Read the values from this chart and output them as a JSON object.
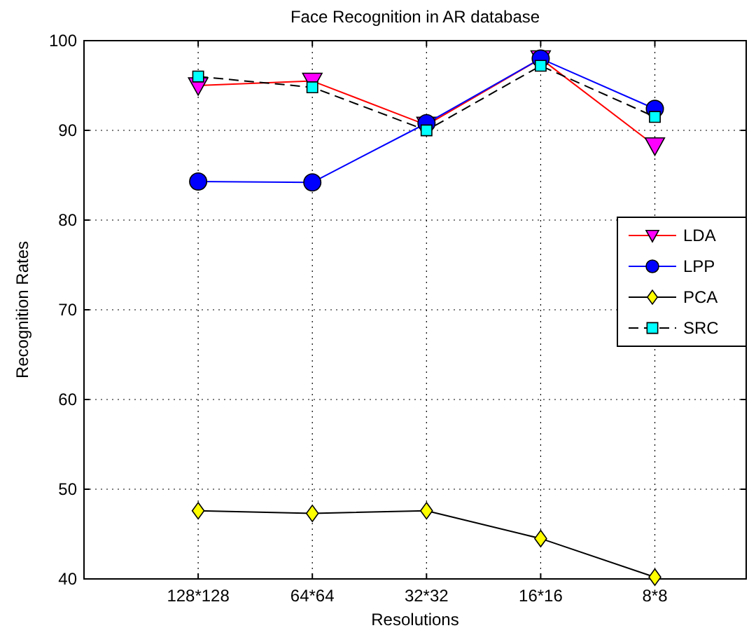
{
  "chart_data": {
    "type": "line",
    "title": "Face Recognition in AR database",
    "xlabel": "Resolutions",
    "ylabel": "Recognition Rates",
    "categories": [
      "128*128",
      "64*64",
      "32*32",
      "16*16",
      "8*8"
    ],
    "ylim": [
      40,
      100
    ],
    "yticks": [
      40,
      50,
      60,
      70,
      80,
      90,
      100
    ],
    "grid": true,
    "legend": "right",
    "series": [
      {
        "name": "LDA",
        "color": "#ff0000",
        "colors": [
          "#ff00ff",
          "#ff00ff",
          "#ff00ff",
          "#ff00ff",
          "#ff00ff"
        ],
        "marker": "triangle",
        "line_style": "solid",
        "values": [
          95.0,
          95.5,
          90.6,
          98.0,
          88.3
        ]
      },
      {
        "name": "LPP",
        "color": "#0000ff",
        "colors": [
          "#0000ff",
          "#0000ff",
          "#0000ff",
          "#0000ff",
          "#0000ff"
        ],
        "marker": "circle",
        "line_style": "solid",
        "values": [
          84.3,
          84.2,
          90.8,
          98.0,
          92.4
        ]
      },
      {
        "name": "PCA",
        "color": "#000000",
        "colors": [
          "#ffff00",
          "#ffff00",
          "#ffff00",
          "#ffff00",
          "#ffff00"
        ],
        "marker": "diamond",
        "line_style": "solid",
        "values": [
          47.6,
          47.3,
          47.6,
          44.5,
          40.2
        ]
      },
      {
        "name": "SRC",
        "color": "#000000",
        "colors": [
          "#00ffff",
          "#00ffff",
          "#00ffff",
          "#00ffff",
          "#00ffff"
        ],
        "marker": "square",
        "line_style": "dashed",
        "values": [
          96.0,
          94.8,
          90.0,
          97.2,
          91.5
        ]
      }
    ]
  }
}
